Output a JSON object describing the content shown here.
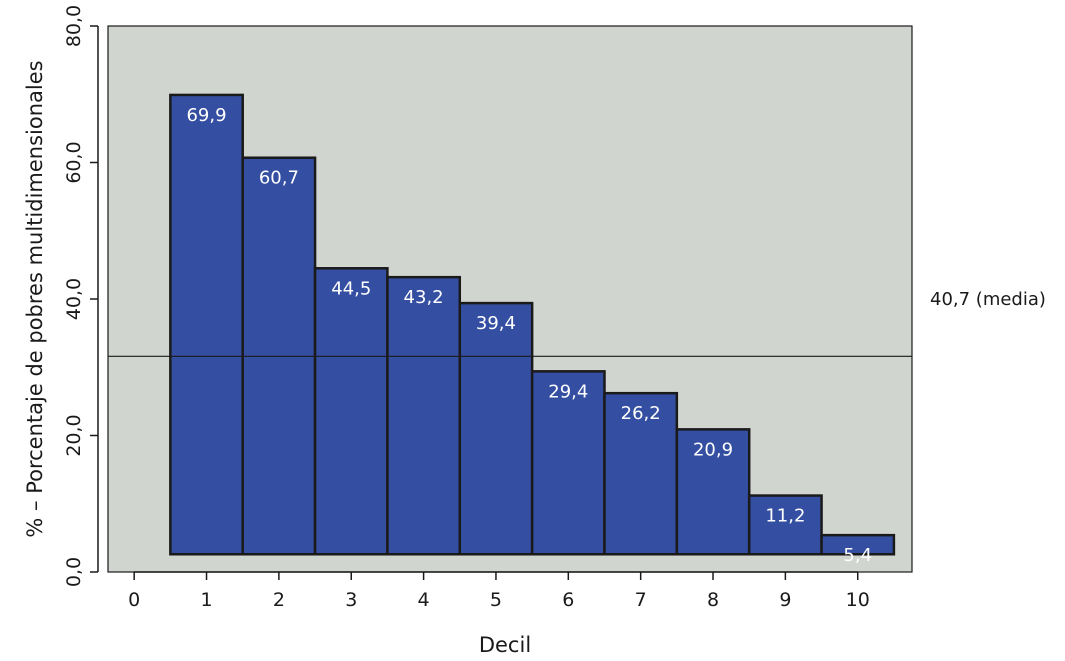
{
  "chart_data": {
    "type": "bar",
    "categories": [
      "1",
      "2",
      "3",
      "4",
      "5",
      "6",
      "7",
      "8",
      "9",
      "10"
    ],
    "values": [
      69.9,
      60.7,
      44.5,
      43.2,
      39.4,
      29.4,
      26.2,
      20.9,
      11.2,
      5.4
    ],
    "value_labels": [
      "69,9",
      "60,7",
      "44,5",
      "43,2",
      "39,4",
      "29,4",
      "26,2",
      "20,9",
      "11,2",
      "5,4"
    ],
    "xlabel": "Decil",
    "ylabel": "% – Porcentaje de pobres multidimensionales",
    "x_ticks": [
      "0",
      "1",
      "2",
      "3",
      "4",
      "5",
      "6",
      "7",
      "8",
      "9",
      "10"
    ],
    "x_tick_values": [
      0,
      1,
      2,
      3,
      4,
      5,
      6,
      7,
      8,
      9,
      10
    ],
    "y_ticks": [
      "0,0",
      "20,0",
      "40,0",
      "60,0",
      "80,0"
    ],
    "y_tick_values": [
      0,
      20,
      40,
      60,
      80
    ],
    "ylim": [
      0,
      80
    ],
    "xlim": [
      -0.5,
      10.75
    ],
    "bar_base": 2.6,
    "mean": {
      "value": 40.7,
      "plot_position": 31.6,
      "label": "40,7 (media)"
    },
    "grid": false,
    "colors": {
      "bar_fill": "#344fa2",
      "bar_stroke": "#1a1a1a",
      "plot_background": "#d1d5d0",
      "axis": "#1a1a1a",
      "bar_label": "#ffffff"
    }
  }
}
